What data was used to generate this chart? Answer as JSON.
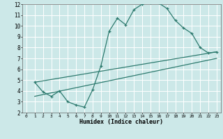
{
  "bg_color": "#cce8e8",
  "grid_color": "#ffffff",
  "line_color": "#2d7a6e",
  "xlabel": "Humidex (Indice chaleur)",
  "xlim": [
    -0.5,
    23.5
  ],
  "ylim": [
    2,
    12
  ],
  "xticks": [
    0,
    1,
    2,
    3,
    4,
    5,
    6,
    7,
    8,
    9,
    10,
    11,
    12,
    13,
    14,
    15,
    16,
    17,
    18,
    19,
    20,
    21,
    22,
    23
  ],
  "yticks": [
    2,
    3,
    4,
    5,
    6,
    7,
    8,
    9,
    10,
    11,
    12
  ],
  "curve1_x": [
    1,
    2,
    3,
    4,
    5,
    6,
    7,
    8,
    9,
    10,
    11,
    12,
    13,
    14,
    15,
    16,
    17,
    18,
    19,
    20,
    21,
    22,
    23
  ],
  "curve1_y": [
    4.8,
    3.9,
    3.5,
    4.0,
    3.0,
    2.7,
    2.5,
    4.1,
    6.3,
    9.5,
    10.7,
    10.1,
    11.5,
    12.0,
    12.15,
    12.1,
    11.6,
    10.5,
    9.8,
    9.3,
    8.0,
    7.5,
    7.6
  ],
  "curve2_x": [
    1,
    23
  ],
  "curve2_y": [
    4.8,
    7.6
  ],
  "curve3_x": [
    1,
    23
  ],
  "curve3_y": [
    3.5,
    7.0
  ]
}
